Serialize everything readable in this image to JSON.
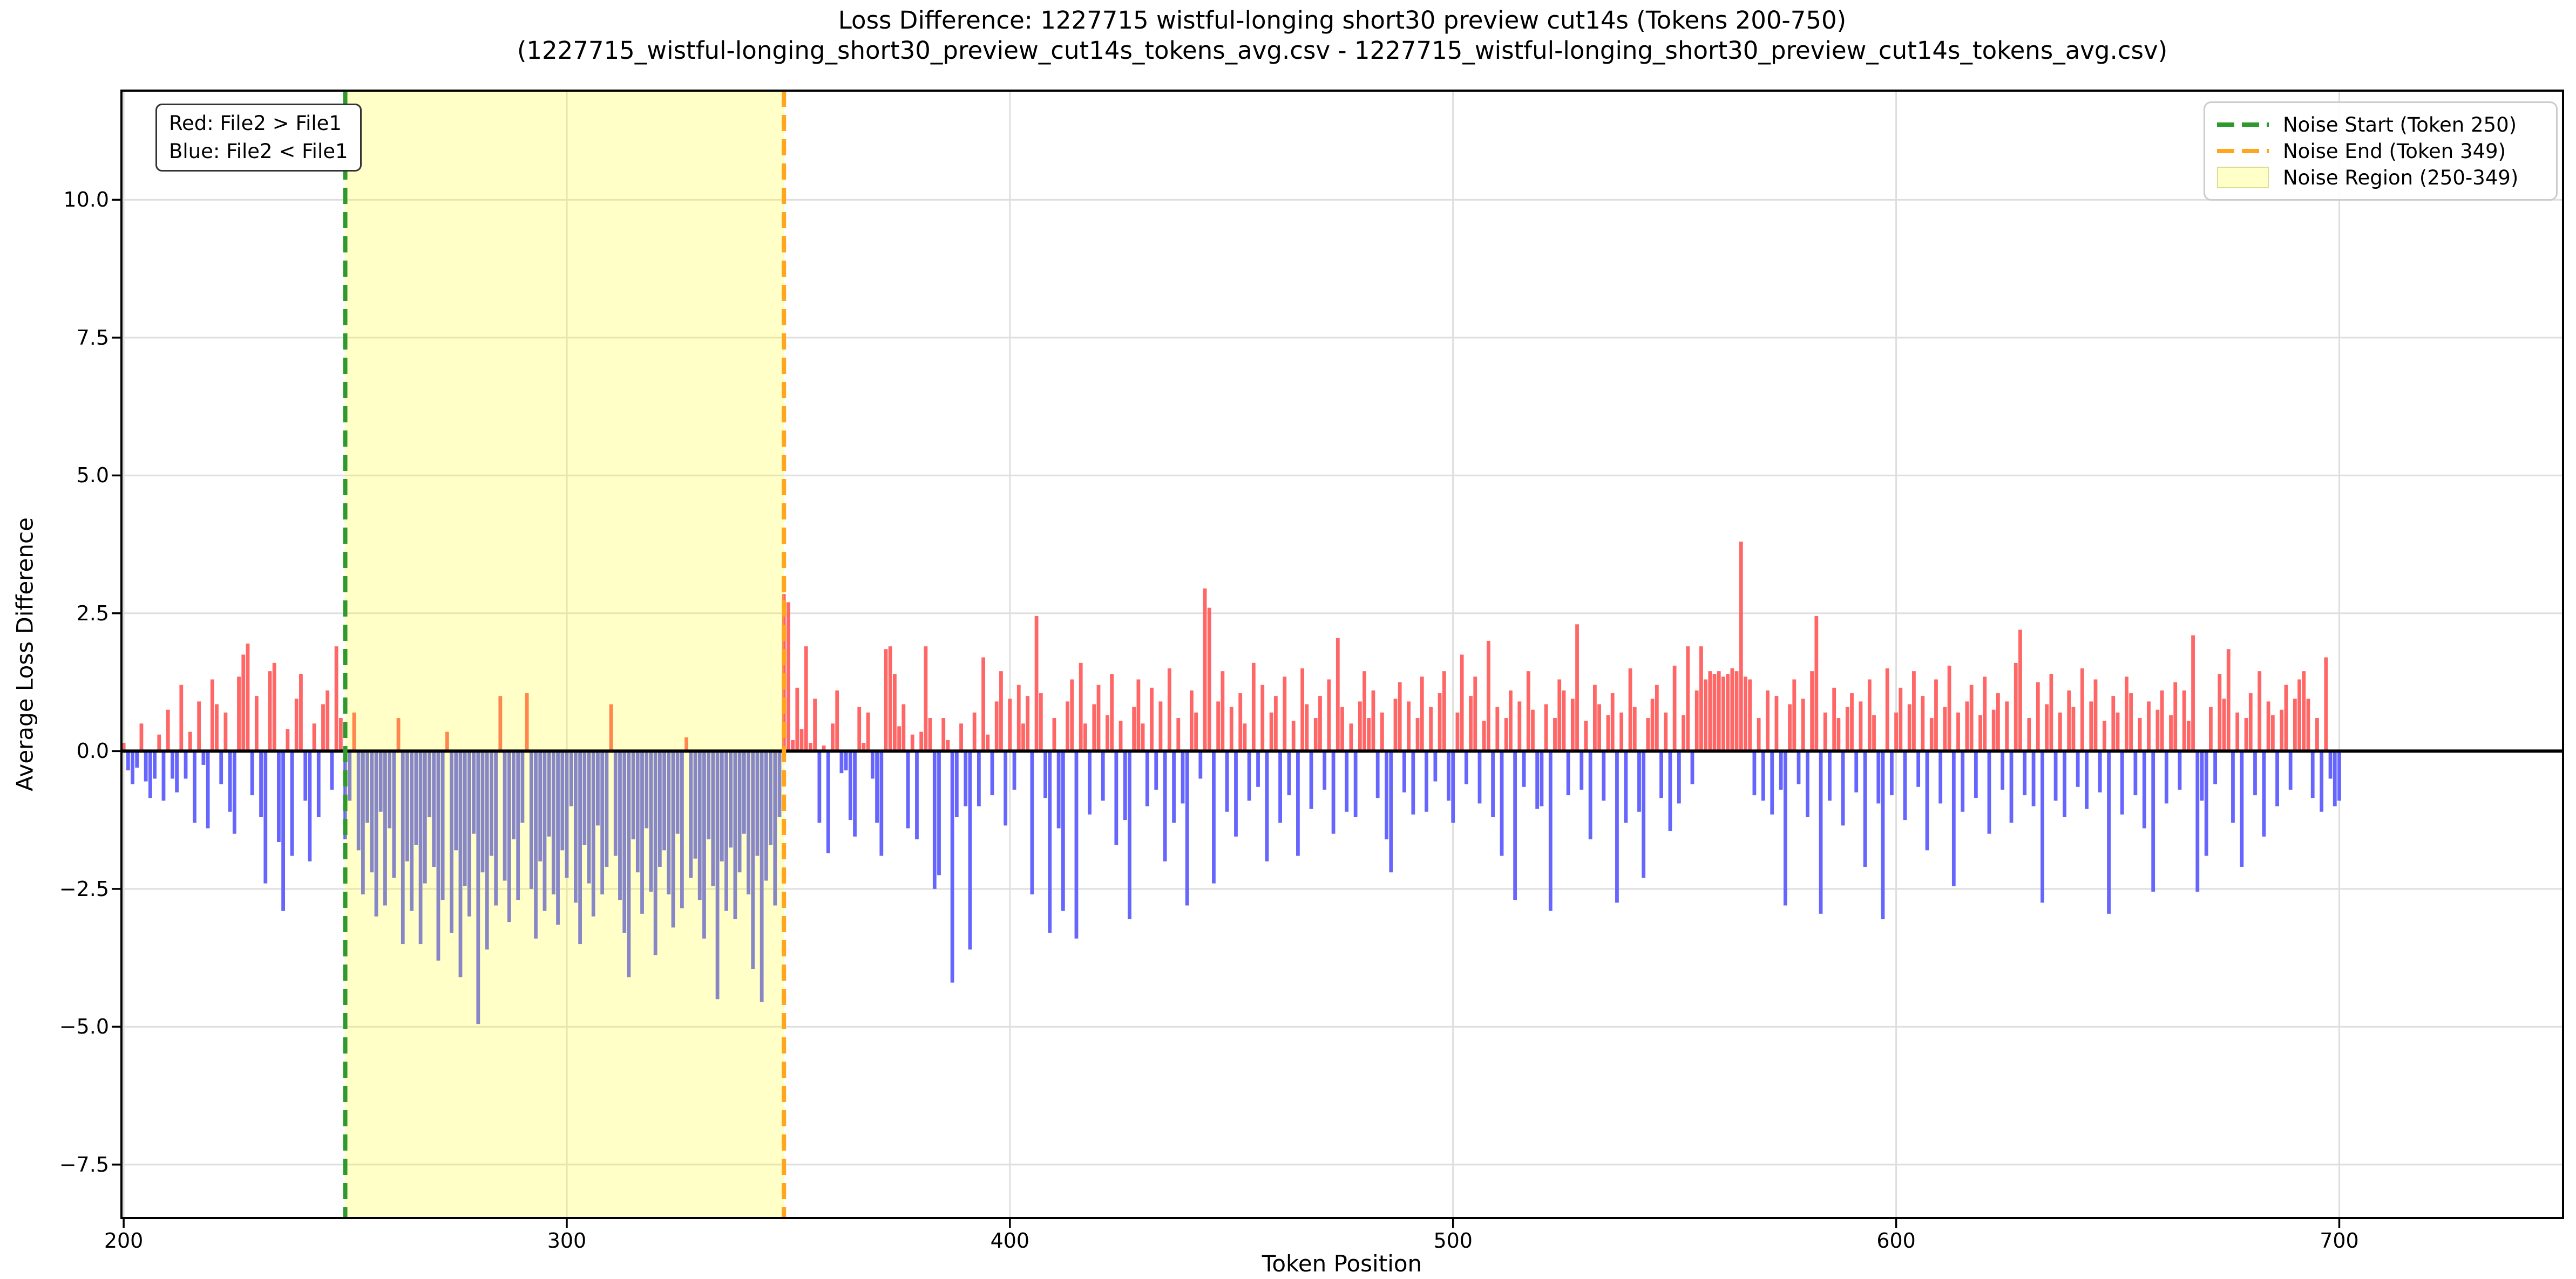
{
  "title": {
    "line1": "Loss Difference: 1227715 wistful-longing short30 preview cut14s (Tokens 200-750)",
    "line2": "(1227715_wistful-longing_short30_preview_cut14s_tokens_avg.csv - 1227715_wistful-longing_short30_preview_cut14s_tokens_avg.csv)"
  },
  "axes": {
    "x_label": "Token Position",
    "y_label": "Average Loss Difference",
    "x_ticks": [
      "200",
      "300",
      "400",
      "500",
      "600",
      "700"
    ],
    "y_ticks": [
      "10.0",
      "7.5",
      "5.0",
      "2.5",
      "0.0",
      "−2.5",
      "−5.0",
      "−7.5"
    ]
  },
  "annotation": {
    "line1": "Red: File2 > File1",
    "line2": "Blue: File2 < File1"
  },
  "legend": {
    "items": [
      {
        "label": "Noise Start (Token 250)",
        "swatch": "dash",
        "color_key": "noise_start_line"
      },
      {
        "label": "Noise End (Token 349)",
        "swatch": "dash",
        "color_key": "noise_end_line"
      },
      {
        "label": "Noise Region (250-349)",
        "swatch": "patch",
        "color_key": "region_swatch_fill"
      }
    ]
  },
  "noise_region": {
    "start": 250,
    "end": 349
  },
  "colors": {
    "bar_positive": "#FF6666",
    "bar_negative": "#6666FF",
    "noise_overlay": "rgba(255,255,0,0.22)",
    "noise_start_line": "#2E9A2E",
    "noise_end_line": "#FFA51E",
    "grid": "#DEDEDE",
    "axis": "#000000",
    "region_swatch_fill": "#FFFFC8",
    "region_swatch_border": "#DCDC96"
  },
  "chart_data": {
    "type": "bar",
    "title": "Loss Difference: 1227715 wistful-longing short30 preview cut14s (Tokens 200-750)",
    "subtitle": "(1227715_wistful-longing_short30_preview_cut14s_tokens_avg.csv - 1227715_wistful-longing_short30_preview_cut14s_tokens_avg.csv)",
    "xlabel": "Token Position",
    "ylabel": "Average Loss Difference",
    "xlim": [
      199.5,
      750.5
    ],
    "ylim": [
      -8.47,
      11.98
    ],
    "x_tick_values": [
      200,
      300,
      400,
      500,
      600,
      700
    ],
    "y_tick_values": [
      10,
      7.5,
      5,
      2.5,
      0,
      -2.5,
      -5,
      -7.5
    ],
    "grid": true,
    "legend_position": "upper right",
    "noise_start": 250,
    "noise_end": 349,
    "x_start": 200,
    "x_step": 1,
    "values": [
      0.15,
      -0.35,
      -0.6,
      -0.3,
      0.5,
      -0.55,
      -0.85,
      -0.5,
      0.3,
      -0.9,
      0.75,
      -0.5,
      -0.75,
      1.2,
      -0.5,
      0.35,
      -1.3,
      0.9,
      -0.25,
      -1.4,
      1.3,
      0.85,
      -0.6,
      0.7,
      -1.1,
      -1.5,
      1.35,
      1.75,
      1.95,
      -0.8,
      1.0,
      -1.2,
      -2.4,
      1.45,
      1.6,
      -1.65,
      -2.9,
      0.4,
      -1.9,
      0.95,
      1.4,
      -0.9,
      -2.0,
      0.5,
      -1.2,
      0.85,
      1.1,
      -0.7,
      1.9,
      0.6,
      -1.6,
      -0.9,
      0.7,
      -1.8,
      -2.6,
      -1.3,
      -2.2,
      -3.0,
      -1.1,
      -2.8,
      -1.4,
      -2.3,
      0.6,
      -3.5,
      -2.0,
      -2.9,
      -1.7,
      -3.5,
      -2.4,
      -1.2,
      -2.1,
      -3.8,
      -2.7,
      0.35,
      -3.3,
      -1.8,
      -4.1,
      -2.45,
      -3.0,
      -1.5,
      -4.95,
      -2.2,
      -3.6,
      -1.9,
      -2.8,
      1.0,
      -2.35,
      -3.1,
      -1.6,
      -2.7,
      -1.3,
      1.05,
      -2.5,
      -3.4,
      -2.0,
      -2.9,
      -1.55,
      -2.6,
      -3.15,
      -1.8,
      -2.3,
      -1.0,
      -2.75,
      -3.5,
      -1.7,
      -2.4,
      -3.0,
      -1.35,
      -2.6,
      -2.1,
      0.85,
      -1.9,
      -2.7,
      -3.3,
      -4.1,
      -1.6,
      -2.2,
      -2.95,
      -1.4,
      -2.55,
      -3.7,
      -2.1,
      -1.8,
      -2.6,
      -3.2,
      -1.5,
      -2.85,
      0.25,
      -2.3,
      -1.95,
      -2.7,
      -3.4,
      -1.6,
      -2.45,
      -4.5,
      -2.0,
      -2.9,
      -1.75,
      -3.05,
      -2.2,
      -1.5,
      -2.6,
      -3.95,
      -1.9,
      -4.55,
      -2.35,
      -1.7,
      -2.8,
      -1.2,
      2.85,
      2.7,
      0.2,
      1.15,
      0.4,
      1.9,
      0.15,
      0.95,
      -1.3,
      0.1,
      -1.85,
      0.5,
      1.1,
      -0.4,
      -0.35,
      -1.25,
      -1.55,
      0.8,
      0.15,
      0.7,
      -0.5,
      -1.3,
      -1.9,
      1.85,
      1.9,
      1.4,
      0.45,
      0.85,
      -1.4,
      0.3,
      -1.6,
      0.35,
      1.9,
      0.6,
      -2.5,
      -2.25,
      0.6,
      0.2,
      -4.2,
      -1.2,
      0.5,
      -1.0,
      -3.6,
      0.7,
      -1.0,
      1.7,
      0.3,
      -0.8,
      0.9,
      1.45,
      -1.35,
      0.95,
      -0.7,
      1.2,
      0.5,
      1.0,
      -2.6,
      2.45,
      1.05,
      -0.85,
      -3.3,
      0.6,
      -1.4,
      -2.9,
      0.9,
      1.3,
      -3.4,
      1.6,
      0.5,
      -1.15,
      0.85,
      1.2,
      -0.9,
      0.65,
      1.4,
      -1.7,
      0.55,
      -1.25,
      -3.05,
      0.8,
      1.3,
      0.5,
      -1.0,
      1.15,
      -0.7,
      0.9,
      -2.0,
      1.5,
      -1.3,
      0.6,
      -0.95,
      -2.8,
      1.1,
      0.7,
      -0.5,
      2.95,
      2.6,
      -2.4,
      0.9,
      1.45,
      -1.1,
      0.8,
      -1.55,
      1.05,
      0.5,
      -0.9,
      1.6,
      -0.65,
      1.2,
      -2.0,
      0.7,
      1.0,
      -1.3,
      1.35,
      -0.8,
      0.55,
      -1.9,
      1.5,
      0.85,
      -1.05,
      0.6,
      1.0,
      -0.7,
      1.3,
      -1.5,
      2.05,
      0.8,
      -1.1,
      0.5,
      -1.2,
      0.9,
      1.45,
      0.6,
      1.1,
      -0.85,
      0.7,
      -1.6,
      -2.2,
      0.95,
      1.25,
      -0.75,
      0.9,
      -1.15,
      0.6,
      1.35,
      -1.1,
      0.8,
      -0.55,
      1.05,
      1.45,
      -0.9,
      -1.3,
      0.7,
      1.75,
      -0.6,
      1.0,
      1.35,
      -0.95,
      0.55,
      2.0,
      -1.2,
      0.8,
      -1.9,
      0.6,
      1.1,
      -2.7,
      0.9,
      -0.65,
      1.45,
      0.75,
      -1.05,
      -1.0,
      0.85,
      -2.9,
      0.6,
      1.3,
      1.1,
      -0.8,
      0.95,
      2.3,
      -0.7,
      0.55,
      -1.6,
      1.2,
      0.85,
      -0.9,
      0.65,
      1.05,
      -2.75,
      0.7,
      -1.3,
      1.5,
      0.8,
      -1.1,
      -2.3,
      0.6,
      0.95,
      1.2,
      -0.85,
      0.7,
      -1.45,
      1.55,
      -0.95,
      0.65,
      1.9,
      -0.6,
      1.1,
      1.9,
      1.3,
      1.45,
      1.4,
      1.45,
      1.35,
      1.4,
      1.5,
      1.45,
      3.8,
      1.35,
      1.3,
      -0.8,
      0.6,
      -0.9,
      1.1,
      -1.15,
      1.0,
      -0.7,
      -2.8,
      0.85,
      1.3,
      -0.6,
      0.95,
      -1.2,
      1.45,
      2.45,
      -2.95,
      0.7,
      -0.9,
      1.15,
      0.6,
      -1.35,
      0.8,
      1.05,
      -0.75,
      0.9,
      -2.1,
      1.3,
      0.65,
      -0.95,
      -3.05,
      1.5,
      -0.8,
      0.7,
      1.15,
      -1.25,
      0.85,
      1.45,
      -0.65,
      1.0,
      -1.8,
      0.6,
      1.3,
      -0.95,
      0.8,
      1.55,
      -2.45,
      0.7,
      -1.1,
      0.9,
      1.2,
      -0.85,
      0.65,
      1.35,
      -1.5,
      0.75,
      1.05,
      -0.7,
      0.9,
      -1.3,
      1.6,
      2.2,
      -0.8,
      0.6,
      -1.0,
      1.25,
      -2.75,
      0.85,
      1.4,
      -0.9,
      0.7,
      -1.2,
      1.1,
      0.8,
      -0.65,
      1.5,
      -1.05,
      0.9,
      1.3,
      -0.75,
      0.55,
      -2.95,
      1.0,
      0.7,
      -1.15,
      1.35,
      1.05,
      -0.8,
      0.6,
      -1.4,
      0.9,
      -2.55,
      0.75,
      1.1,
      -0.95,
      0.65,
      1.25,
      -0.7,
      1.1,
      0.55,
      2.1,
      -2.55,
      -0.9,
      -1.9,
      0.8,
      -0.6,
      1.4,
      0.95,
      1.85,
      -1.3,
      0.7,
      -2.1,
      0.6,
      1.05,
      -0.8,
      1.45,
      -1.55,
      0.9,
      0.65,
      -1.0,
      0.75,
      1.2,
      -0.7,
      0.95,
      1.3,
      1.45,
      0.95,
      -0.85,
      0.6,
      -1.1,
      1.7,
      -0.5,
      -1.0,
      -0.9
    ]
  }
}
